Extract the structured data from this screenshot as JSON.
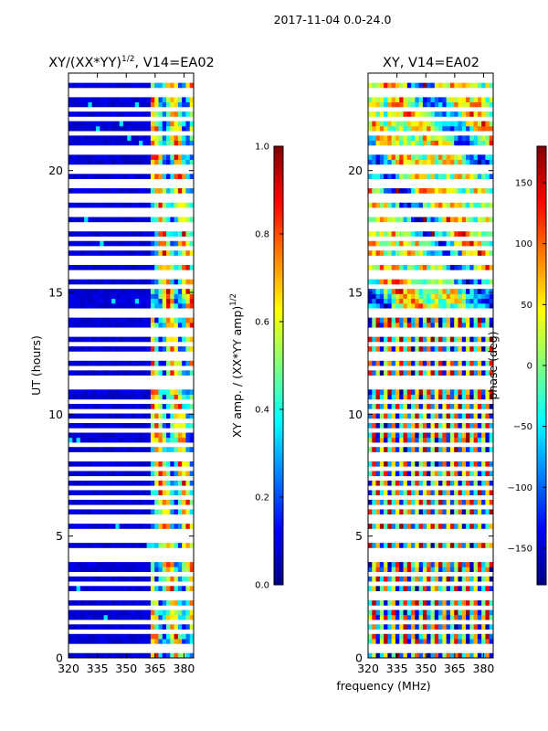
{
  "suptitle": "2017-11-04 0.0-24.0",
  "colors": {
    "background": "#ffffff",
    "gap": "#ffffff",
    "frame": "#000000"
  },
  "chart_data": [
    {
      "type": "heatmap",
      "title_main": "XY/(XX*YY)",
      "title_sup": "1/2",
      "title_rest": ", V14=EA02",
      "ylabel": "UT (hours)",
      "xlim": [
        320,
        385
      ],
      "ylim": [
        0,
        24
      ],
      "xticks": [
        320,
        335,
        350,
        365,
        380
      ],
      "yticks": [
        0,
        5,
        10,
        15,
        20
      ],
      "yticklabels": [
        "0",
        "5",
        "10",
        "15",
        "20"
      ],
      "colormap": "jet",
      "colorbar": {
        "label_main": "XY amp. / (XX*YY amp)",
        "label_sup": "1/2",
        "range": [
          0.0,
          1.0
        ],
        "ticks": [
          0.0,
          0.2,
          0.4,
          0.6,
          0.8,
          1.0
        ],
        "ticklabels": [
          "0.0",
          "0.2",
          "0.4",
          "0.6",
          "0.8",
          "1.0"
        ]
      },
      "data_extent_hours": [
        0,
        23.6
      ],
      "notes": "Mostly low amplitude (~0.05) below 362 MHz; elevated amplitude (0.3-0.8) between ~362 and 385 MHz"
    },
    {
      "type": "heatmap",
      "title": "XY, V14=EA02",
      "xlabel": "frequency (MHz)",
      "xlim": [
        320,
        385
      ],
      "ylim": [
        0,
        24
      ],
      "xticks": [
        320,
        335,
        350,
        365,
        380
      ],
      "yticks": [
        0,
        5,
        10,
        15,
        20
      ],
      "yticklabels": [
        "0",
        "5",
        "10",
        "15",
        "20"
      ],
      "colormap": "jet",
      "colorbar": {
        "label": "phase (deg)",
        "range": [
          -180,
          180
        ],
        "ticks": [
          -150,
          -100,
          -50,
          0,
          50,
          100,
          150
        ],
        "ticklabels": [
          "−150",
          "−100",
          "−50",
          "0",
          "50",
          "100",
          "150"
        ]
      },
      "data_extent_hours": [
        0,
        23.6
      ],
      "notes": "Phase wraps across frequency, showing vertical bands in the lower half and mixed structure above"
    }
  ],
  "gap_hours": [
    0.3,
    0.45,
    1.05,
    1.5,
    2.15,
    2.45,
    2.75,
    3.05,
    3.35,
    3.45,
    3.95,
    4.25,
    4.45,
    4.75,
    4.95,
    5.25,
    5.65,
    5.75,
    5.85,
    6.15,
    6.55,
    6.95,
    7.35,
    7.75,
    8.15,
    8.45,
    8.75,
    8.85,
    9.35,
    9.75,
    10.05,
    10.45,
    10.55,
    11.05,
    11.25,
    11.45,
    11.85,
    12.2,
    12.45,
    12.95,
    13.2,
    13.55,
    14.0,
    14.1,
    14.2,
    15.25,
    15.55,
    15.85,
    16.15,
    16.45,
    16.85,
    17.25,
    17.55,
    17.85,
    18.15,
    18.45,
    18.75,
    19.05,
    19.35,
    19.65,
    19.95,
    20.25,
    20.75,
    20.85,
    21.55,
    22.05,
    22.15,
    22.55,
    23.05,
    23.35
  ]
}
